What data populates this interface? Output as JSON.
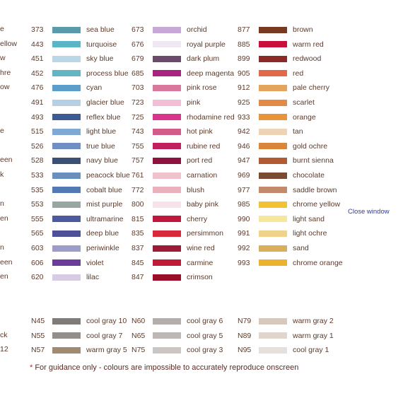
{
  "left_edge": [
    "e",
    "ellow",
    "w",
    "hre",
    "ow",
    "",
    "",
    "e",
    "",
    "een",
    "k",
    "",
    "n",
    "en",
    "",
    "n",
    "een",
    "en"
  ],
  "left_edge_gray": [
    "",
    "ck",
    "12"
  ],
  "columns": [
    {
      "items": [
        {
          "code": "373",
          "name": "sea blue",
          "color": "#5a9aaa"
        },
        {
          "code": "443",
          "name": "turquoise",
          "color": "#5ab6c4"
        },
        {
          "code": "451",
          "name": "sky blue",
          "color": "#b9d7e6"
        },
        {
          "code": "452",
          "name": "process blue",
          "color": "#62b6c4"
        },
        {
          "code": "476",
          "name": "cyan",
          "color": "#5a9fcb"
        },
        {
          "code": "491",
          "name": "glacier blue",
          "color": "#b5cfe4"
        },
        {
          "code": "493",
          "name": "reflex blue",
          "color": "#3d5a95"
        },
        {
          "code": "515",
          "name": "light blue",
          "color": "#7fa8d4"
        },
        {
          "code": "526",
          "name": "true blue",
          "color": "#6f8fc4"
        },
        {
          "code": "528",
          "name": "navy blue",
          "color": "#3b5077"
        },
        {
          "code": "533",
          "name": "peacock blue",
          "color": "#6b8fbd"
        },
        {
          "code": "535",
          "name": "cobalt blue",
          "color": "#5179b3"
        },
        {
          "code": "553",
          "name": "mist purple",
          "color": "#9aa6a2"
        },
        {
          "code": "555",
          "name": "ultramarine",
          "color": "#4c5aa0"
        },
        {
          "code": "565",
          "name": "deep blue",
          "color": "#4f509a"
        },
        {
          "code": "603",
          "name": "periwinkle",
          "color": "#9e9cc9"
        },
        {
          "code": "606",
          "name": "violet",
          "color": "#6a3d9a"
        },
        {
          "code": "620",
          "name": "lilac",
          "color": "#d8cbe4"
        }
      ]
    },
    {
      "items": [
        {
          "code": "673",
          "name": "orchid",
          "color": "#c8a8d6"
        },
        {
          "code": "676",
          "name": "royal purple",
          "color": "#efe7f2"
        },
        {
          "code": "679",
          "name": "dark plum",
          "color": "#6b4a6b"
        },
        {
          "code": "685",
          "name": "deep magenta",
          "color": "#a8247f"
        },
        {
          "code": "703",
          "name": "pink rose",
          "color": "#d9789c"
        },
        {
          "code": "723",
          "name": "pink",
          "color": "#f0bfd5"
        },
        {
          "code": "725",
          "name": "rhodamine red",
          "color": "#d9358c"
        },
        {
          "code": "743",
          "name": "hot pink",
          "color": "#d35b8a"
        },
        {
          "code": "755",
          "name": "rubine red",
          "color": "#c0205e"
        },
        {
          "code": "757",
          "name": "port red",
          "color": "#8e1240"
        },
        {
          "code": "761",
          "name": "carnation",
          "color": "#efc2cc"
        },
        {
          "code": "772",
          "name": "blush",
          "color": "#eab1bd"
        },
        {
          "code": "800",
          "name": "baby pink",
          "color": "#f8e3ea"
        },
        {
          "code": "815",
          "name": "cherry",
          "color": "#c2173c"
        },
        {
          "code": "835",
          "name": "persimmon",
          "color": "#d8293a"
        },
        {
          "code": "837",
          "name": "wine red",
          "color": "#9c1c38"
        },
        {
          "code": "845",
          "name": "carmine",
          "color": "#c01a36"
        },
        {
          "code": "847",
          "name": "crimson",
          "color": "#9a0f28"
        }
      ]
    },
    {
      "items": [
        {
          "code": "877",
          "name": "brown",
          "color": "#7a3a22"
        },
        {
          "code": "885",
          "name": "warm red",
          "color": "#c8103a"
        },
        {
          "code": "899",
          "name": "redwood",
          "color": "#8c2a2a"
        },
        {
          "code": "905",
          "name": "red",
          "color": "#e2684a"
        },
        {
          "code": "912",
          "name": "pale cherry",
          "color": "#e3a45e"
        },
        {
          "code": "925",
          "name": "scarlet",
          "color": "#e58a45"
        },
        {
          "code": "933",
          "name": "orange",
          "color": "#e8943a"
        },
        {
          "code": "942",
          "name": "tan",
          "color": "#efd3b5"
        },
        {
          "code": "946",
          "name": "gold ochre",
          "color": "#d9853a"
        },
        {
          "code": "947",
          "name": "burnt sienna",
          "color": "#b25a32"
        },
        {
          "code": "969",
          "name": "chocolate",
          "color": "#7a4a32"
        },
        {
          "code": "977",
          "name": "saddle brown",
          "color": "#c28a6a"
        },
        {
          "code": "985",
          "name": "chrome yellow",
          "color": "#f1c232"
        },
        {
          "code": "990",
          "name": "light sand",
          "color": "#f7e79a"
        },
        {
          "code": "991",
          "name": "light ochre",
          "color": "#f0d28a"
        },
        {
          "code": "992",
          "name": "sand",
          "color": "#d9b05a"
        },
        {
          "code": "993",
          "name": "chrome orange",
          "color": "#eab22e"
        }
      ]
    }
  ],
  "gray_columns": [
    {
      "items": [
        {
          "code": "N45",
          "name": "cool gray 10",
          "color": "#7f7b78"
        },
        {
          "code": "N55",
          "name": "cool gray 7",
          "color": "#948e8a"
        },
        {
          "code": "N57",
          "name": "warm gray 5",
          "color": "#a08a72"
        }
      ]
    },
    {
      "items": [
        {
          "code": "N60",
          "name": "cool gray 6",
          "color": "#b3aeab"
        },
        {
          "code": "N65",
          "name": "cool gray 5",
          "color": "#bdb8b5"
        },
        {
          "code": "N75",
          "name": "cool gray 3",
          "color": "#cbc6c3"
        }
      ]
    },
    {
      "items": [
        {
          "code": "N79",
          "name": "warm gray 2",
          "color": "#d6c8bd"
        },
        {
          "code": "N89",
          "name": "warm gray 1",
          "color": "#e0d6ce"
        },
        {
          "code": "N95",
          "name": "cool gray 1",
          "color": "#e6e0dc"
        }
      ]
    }
  ],
  "close_window": "Close window",
  "note": {
    "star": "*",
    "text": " For guidance only - colours are impossible to accurately reproduce onscreen"
  }
}
